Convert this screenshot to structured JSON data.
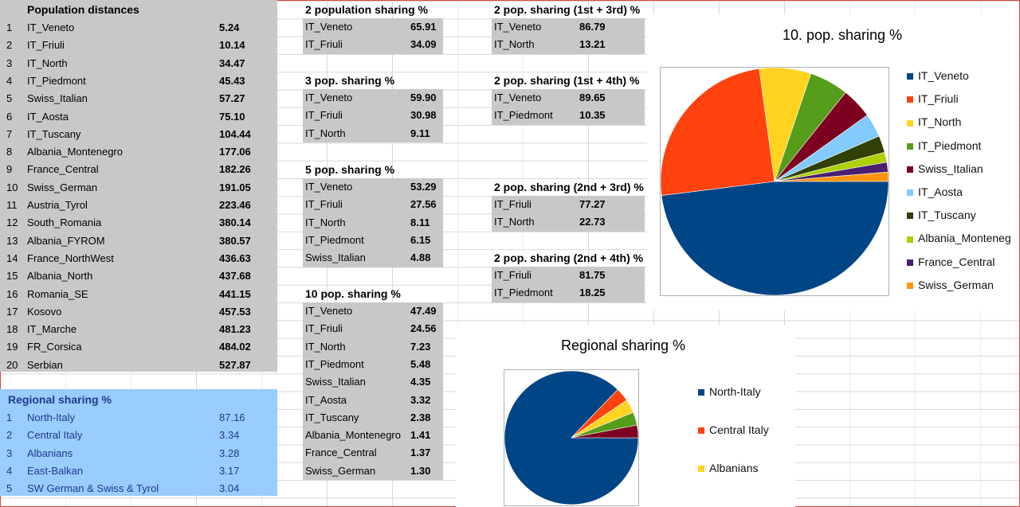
{
  "distances": {
    "title": "Population distances",
    "rows": [
      {
        "n": "1",
        "name": "IT_Veneto",
        "val": "5.24"
      },
      {
        "n": "2",
        "name": "IT_Friuli",
        "val": "10.14"
      },
      {
        "n": "3",
        "name": "IT_North",
        "val": "34.47"
      },
      {
        "n": "4",
        "name": "IT_Piedmont",
        "val": "45.43"
      },
      {
        "n": "5",
        "name": "Swiss_Italian",
        "val": "57.27"
      },
      {
        "n": "6",
        "name": "IT_Aosta",
        "val": "75.10"
      },
      {
        "n": "7",
        "name": "IT_Tuscany",
        "val": "104.44"
      },
      {
        "n": "8",
        "name": "Albania_Montenegro",
        "val": "177.06"
      },
      {
        "n": "9",
        "name": "France_Central",
        "val": "182.26"
      },
      {
        "n": "10",
        "name": "Swiss_German",
        "val": "191.05"
      },
      {
        "n": "11",
        "name": "Austria_Tyrol",
        "val": "223.46"
      },
      {
        "n": "12",
        "name": "South_Romania",
        "val": "380.14"
      },
      {
        "n": "13",
        "name": "Albania_FYROM",
        "val": "380.57"
      },
      {
        "n": "14",
        "name": "France_NorthWest",
        "val": "436.63"
      },
      {
        "n": "15",
        "name": "Albania_North",
        "val": "437.68"
      },
      {
        "n": "16",
        "name": "Romania_SE",
        "val": "441.15"
      },
      {
        "n": "17",
        "name": "Kosovo",
        "val": "457.53"
      },
      {
        "n": "18",
        "name": "IT_Marche",
        "val": "481.23"
      },
      {
        "n": "19",
        "name": "FR_Corsica",
        "val": "484.02"
      },
      {
        "n": "20",
        "name": "Serbian",
        "val": "527.87"
      }
    ]
  },
  "regional": {
    "title": "Regional sharing %",
    "rows": [
      {
        "n": "1",
        "name": "North-Italy",
        "val": "87.16"
      },
      {
        "n": "2",
        "name": "Central Italy",
        "val": "3.34"
      },
      {
        "n": "3",
        "name": "Albanians",
        "val": "3.28"
      },
      {
        "n": "4",
        "name": "East-Balkan",
        "val": "3.17"
      },
      {
        "n": "5",
        "name": "SW German & Swiss & Tyrol",
        "val": "3.04"
      }
    ]
  },
  "sharing2": {
    "title": "2 population sharing %",
    "rows": [
      {
        "name": "IT_Veneto",
        "val": "65.91"
      },
      {
        "name": "IT_Friuli",
        "val": "34.09"
      }
    ]
  },
  "sharing3": {
    "title": "3 pop. sharing %",
    "rows": [
      {
        "name": "IT_Veneto",
        "val": "59.90"
      },
      {
        "name": "IT_Friuli",
        "val": "30.98"
      },
      {
        "name": "IT_North",
        "val": "9.11"
      }
    ]
  },
  "sharing5": {
    "title": "5 pop. sharing %",
    "rows": [
      {
        "name": "IT_Veneto",
        "val": "53.29"
      },
      {
        "name": "IT_Friuli",
        "val": "27.56"
      },
      {
        "name": "IT_North",
        "val": "8.11"
      },
      {
        "name": "IT_Piedmont",
        "val": "6.15"
      },
      {
        "name": "Swiss_Italian",
        "val": "4.88"
      }
    ]
  },
  "sharing10": {
    "title": "10 pop. sharing %",
    "rows": [
      {
        "name": "IT_Veneto",
        "val": "47.49"
      },
      {
        "name": "IT_Friuli",
        "val": "24.56"
      },
      {
        "name": "IT_North",
        "val": "7.23"
      },
      {
        "name": "IT_Piedmont",
        "val": "5.48"
      },
      {
        "name": "Swiss_Italian",
        "val": "4.35"
      },
      {
        "name": "IT_Aosta",
        "val": "3.32"
      },
      {
        "name": "IT_Tuscany",
        "val": "2.38"
      },
      {
        "name": "Albania_Montenegro",
        "val": "1.41"
      },
      {
        "name": "France_Central",
        "val": "1.37"
      },
      {
        "name": "Swiss_German",
        "val": "1.30"
      }
    ]
  },
  "pair13": {
    "title": "2 pop. sharing (1st + 3rd) %",
    "rows": [
      {
        "name": "IT_Veneto",
        "val": "86.79"
      },
      {
        "name": "IT_North",
        "val": "13.21"
      }
    ]
  },
  "pair14": {
    "title": "2 pop. sharing (1st + 4th) %",
    "rows": [
      {
        "name": "IT_Veneto",
        "val": "89.65"
      },
      {
        "name": "IT_Piedmont",
        "val": "10.35"
      }
    ]
  },
  "pair23": {
    "title": "2 pop. sharing (2nd + 3rd) %",
    "rows": [
      {
        "name": "IT_Friuli",
        "val": "77.27"
      },
      {
        "name": "IT_North",
        "val": "22.73"
      }
    ]
  },
  "pair24": {
    "title": "2 pop. sharing (2nd + 4th) %",
    "rows": [
      {
        "name": "IT_Friuli",
        "val": "81.75"
      },
      {
        "name": "IT_Piedmont",
        "val": "18.25"
      }
    ]
  },
  "chart_data": [
    {
      "type": "pie",
      "title": "10. pop. sharing %",
      "categories": [
        "IT_Veneto",
        "IT_Friuli",
        "IT_North",
        "IT_Piedmont",
        "Swiss_Italian",
        "IT_Aosta",
        "IT_Tuscany",
        "Albania_Montenegro",
        "France_Central",
        "Swiss_German"
      ],
      "legend_labels": [
        "IT_Veneto",
        "IT_Friuli",
        "IT_North",
        "IT_Piedmont",
        "Swiss_Italian",
        "IT_Aosta",
        "IT_Tuscany",
        "Albania_Monteneg",
        "France_Central",
        "Swiss_German"
      ],
      "values": [
        47.49,
        24.56,
        7.23,
        5.48,
        4.35,
        3.32,
        2.38,
        1.41,
        1.37,
        1.3
      ],
      "colors": [
        "#004586",
        "#ff420e",
        "#ffd320",
        "#579d1c",
        "#7e0021",
        "#83caff",
        "#314004",
        "#aecf00",
        "#4b1f6f",
        "#ff950e"
      ],
      "legend": "right"
    },
    {
      "type": "pie",
      "title": "Regional sharing %",
      "categories": [
        "North-Italy",
        "Central Italy",
        "Albanians",
        "East-Balkan",
        "SW German & Swiss & Tyrol"
      ],
      "legend_labels": [
        "North-Italy",
        "Central Italy",
        "Albanians"
      ],
      "values": [
        87.16,
        3.34,
        3.28,
        3.17,
        3.04
      ],
      "colors": [
        "#004586",
        "#ff420e",
        "#ffd320",
        "#579d1c",
        "#7e0021"
      ],
      "legend": "right"
    }
  ]
}
